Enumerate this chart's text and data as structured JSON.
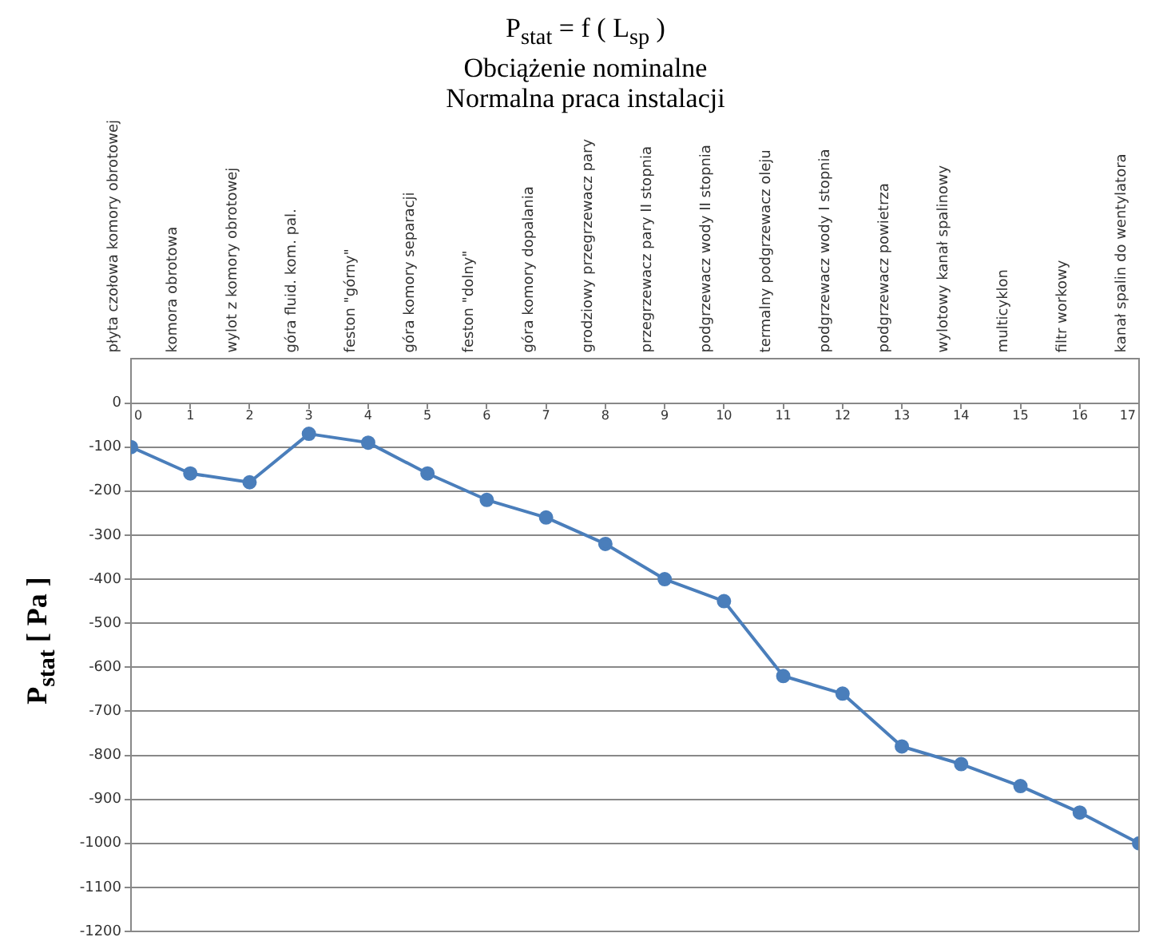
{
  "chart_data": {
    "type": "line",
    "title": "P$_{stat}$ = f ( L$_{sp}$ )",
    "subtitle": "Obciążenie nominalne\nNormalna praca instalacji",
    "ylabel": "P$_{stat}$ [ Pa ]",
    "series": [
      {
        "color": "#4a7ebb",
        "values": [
          -100,
          -160,
          -180,
          -70,
          -90,
          -160,
          -220,
          -260,
          -320,
          -400,
          -450,
          -620,
          -660,
          -780,
          -820,
          -870,
          -930,
          -1000
        ]
      }
    ],
    "x2lim": [
      0,
      17
    ],
    "x2ticks": [
      0,
      1,
      2,
      3,
      4,
      5,
      6,
      7,
      8,
      9,
      10,
      11,
      12,
      13,
      14,
      15,
      16,
      17
    ],
    "categories": [
      "płyta czołowa komory obrotowej",
      "komora obrotowa",
      "wylot z komory obrotowej",
      "góra fluid. kom. pal.",
      "feston \"górny\"",
      "góra komory separacji",
      "feston \"dolny\"",
      "góra komory dopalania",
      "grodziowy przegrzewacz pary",
      "przegrzewacz pary II stopnia",
      "podgrzewacz wody II stopnia",
      "termalny podgrzewacz oleju",
      "podgrzewacz wody I stopnia",
      "podgrzewacz powietrza",
      "wylotowy kanał spalinowy",
      "multicyklon",
      "filtr workowy",
      "kanał spalin do wentylatora"
    ],
    "ylim": [
      -1200,
      100
    ],
    "yticks": [
      -1200,
      -1100,
      -1000,
      -900,
      -800,
      -700,
      -600,
      -500,
      -400,
      -300,
      -200,
      -100,
      0
    ],
    "grid": "y",
    "marker": "circle",
    "line_style": "solid"
  }
}
